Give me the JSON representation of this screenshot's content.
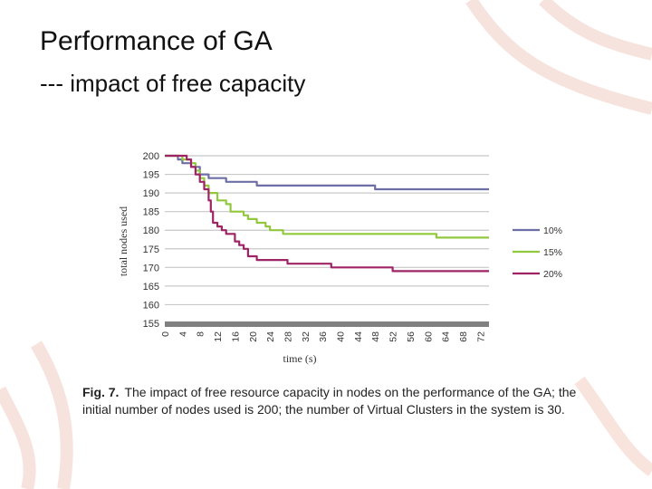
{
  "slide": {
    "title": "Performance of GA",
    "subtitle": "--- impact of free capacity"
  },
  "caption": {
    "label": "Fig. 7.",
    "text": "The impact of free resource capacity in nodes on the performance of the GA; the initial number of nodes used is 200; the number of Virtual Clusters in the system is 30."
  },
  "chart_data": {
    "type": "line",
    "title": "",
    "xlabel": "time (s)",
    "ylabel": "total nodes used",
    "xlim": [
      0,
      74
    ],
    "ylim": [
      155,
      200
    ],
    "xticks": [
      "0",
      "4",
      "8",
      "12",
      "16",
      "20",
      "24",
      "28",
      "32",
      "36",
      "40",
      "44",
      "48",
      "52",
      "56",
      "60",
      "64",
      "68",
      "72"
    ],
    "yticks": [
      "200",
      "195",
      "190",
      "185",
      "180",
      "175",
      "170",
      "165",
      "160",
      "155"
    ],
    "grid": true,
    "legend_position": "right",
    "series": [
      {
        "name": "10%",
        "color": "#6e6ea6",
        "x": [
          0,
          3,
          3,
          4,
          4,
          6,
          6,
          8,
          8,
          10,
          10,
          14,
          14,
          21,
          21,
          48,
          48,
          66,
          66,
          74
        ],
        "y": [
          200,
          200,
          199,
          199,
          198,
          198,
          197,
          197,
          195,
          195,
          194,
          194,
          193,
          193,
          192,
          192,
          191,
          191,
          191,
          191
        ]
      },
      {
        "name": "15%",
        "color": "#92c83e",
        "x": [
          0,
          4,
          4,
          6,
          6,
          7,
          7,
          8,
          8,
          9,
          9,
          10,
          10,
          12,
          12,
          14,
          14,
          15,
          15,
          18,
          18,
          19,
          19,
          21,
          21,
          23,
          23,
          24,
          24,
          27,
          27,
          62,
          62,
          74
        ],
        "y": [
          200,
          200,
          199,
          199,
          198,
          198,
          196,
          196,
          194,
          194,
          192,
          192,
          190,
          190,
          188,
          188,
          187,
          187,
          185,
          185,
          184,
          184,
          183,
          183,
          182,
          182,
          181,
          181,
          180,
          180,
          179,
          179,
          178,
          178
        ]
      },
      {
        "name": "20%",
        "color": "#9e2465",
        "x": [
          0,
          5,
          5,
          6,
          6,
          7,
          7,
          8,
          8,
          9,
          9,
          10,
          10,
          10.5,
          10.5,
          11,
          11,
          12,
          12,
          13,
          13,
          14,
          14,
          16,
          16,
          17,
          17,
          18,
          18,
          19,
          19,
          21,
          21,
          28,
          28,
          38,
          38,
          52,
          52,
          74
        ],
        "y": [
          200,
          200,
          199,
          199,
          197,
          197,
          195,
          195,
          193,
          193,
          191,
          191,
          188,
          188,
          185,
          185,
          182,
          182,
          181,
          181,
          180,
          180,
          179,
          179,
          177,
          177,
          176,
          176,
          175,
          175,
          173,
          173,
          172,
          172,
          171,
          171,
          170,
          170,
          169,
          169
        ]
      }
    ]
  },
  "colors": {
    "grid": "#c8c8c8",
    "axis_band": "#808080",
    "tick_text": "#333333",
    "deco": "#f4d8d0"
  }
}
